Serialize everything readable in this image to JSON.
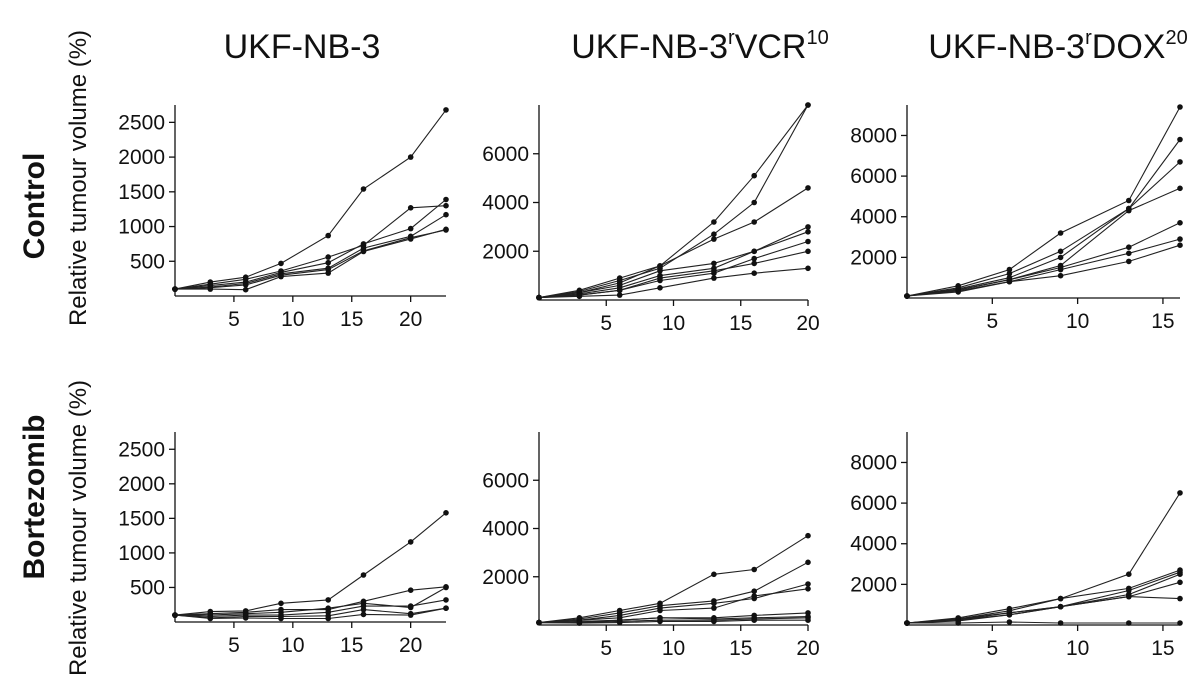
{
  "columns": [
    {
      "base": "UKF-NB-3",
      "sup1": "",
      "mid": "",
      "sup2": ""
    },
    {
      "base": "UKF-NB-3",
      "sup1": "r",
      "mid": "VCR",
      "sup2": "10"
    },
    {
      "base": "UKF-NB-3",
      "sup1": "r",
      "mid": "DOX",
      "sup2": "20"
    }
  ],
  "rows": [
    "Control",
    "Bortezomib"
  ],
  "ylabel": "Relative tumour volume (%)",
  "chart_data": [
    {
      "type": "line",
      "row": "Control",
      "column": "UKF-NB-3",
      "xlim": [
        0,
        23
      ],
      "ylim": [
        0,
        2750
      ],
      "xticks": [
        5,
        10,
        15,
        20
      ],
      "yticks": [
        500,
        1000,
        1500,
        2000,
        2500
      ],
      "x": [
        0,
        3,
        6,
        9,
        13,
        16,
        20,
        23
      ],
      "series": [
        {
          "values": [
            100,
            200,
            270,
            470,
            870,
            1540,
            2000,
            2680
          ]
        },
        {
          "values": [
            100,
            170,
            240,
            360,
            560,
            730,
            1270,
            1300
          ]
        },
        {
          "values": [
            100,
            150,
            200,
            340,
            480,
            750,
            970,
            1390
          ]
        },
        {
          "values": [
            100,
            130,
            180,
            320,
            400,
            690,
            860,
            1170
          ]
        },
        {
          "values": [
            100,
            120,
            160,
            300,
            380,
            650,
            840,
            950
          ]
        },
        {
          "values": [
            100,
            100,
            90,
            280,
            330,
            640,
            820,
            960
          ]
        }
      ]
    },
    {
      "type": "line",
      "row": "Control",
      "column": "UKF-NB-3rVCR10",
      "xlim": [
        0,
        20
      ],
      "ylim": [
        0,
        8000
      ],
      "xticks": [
        5,
        10,
        15,
        20
      ],
      "yticks": [
        2000,
        4000,
        6000
      ],
      "x": [
        0,
        3,
        6,
        9,
        13,
        16,
        20
      ],
      "series": [
        {
          "values": [
            100,
            400,
            900,
            1400,
            3200,
            5100,
            8000
          ]
        },
        {
          "values": [
            100,
            350,
            800,
            1300,
            2700,
            4000,
            8000
          ]
        },
        {
          "values": [
            100,
            300,
            700,
            1400,
            2500,
            3200,
            4600
          ]
        },
        {
          "values": [
            100,
            300,
            600,
            1200,
            1500,
            2000,
            3000
          ]
        },
        {
          "values": [
            100,
            250,
            500,
            1000,
            1300,
            2000,
            2800
          ]
        },
        {
          "values": [
            100,
            200,
            400,
            800,
            1100,
            1700,
            2400
          ]
        },
        {
          "values": [
            100,
            200,
            400,
            900,
            1200,
            1500,
            2000
          ]
        },
        {
          "values": [
            100,
            150,
            200,
            500,
            900,
            1100,
            1300
          ]
        }
      ]
    },
    {
      "type": "line",
      "row": "Control",
      "column": "UKF-NB-3rDOX20",
      "xlim": [
        0,
        16
      ],
      "ylim": [
        0,
        9500
      ],
      "xticks": [
        5,
        10,
        15
      ],
      "yticks": [
        2000,
        4000,
        6000,
        8000
      ],
      "x": [
        0,
        3,
        6,
        9,
        13,
        16
      ],
      "series": [
        {
          "values": [
            100,
            600,
            1400,
            3200,
            4800,
            9400
          ]
        },
        {
          "values": [
            100,
            500,
            1200,
            2300,
            4400,
            7800
          ]
        },
        {
          "values": [
            100,
            450,
            1000,
            2000,
            4400,
            6700
          ]
        },
        {
          "values": [
            100,
            400,
            900,
            1600,
            4300,
            5400
          ]
        },
        {
          "values": [
            100,
            400,
            900,
            1500,
            2500,
            3700
          ]
        },
        {
          "values": [
            100,
            350,
            800,
            1400,
            2200,
            2900
          ]
        },
        {
          "values": [
            100,
            300,
            800,
            1100,
            1800,
            2600
          ]
        }
      ]
    },
    {
      "type": "line",
      "row": "Bortezomib",
      "column": "UKF-NB-3",
      "xlim": [
        0,
        23
      ],
      "ylim": [
        0,
        2750
      ],
      "xticks": [
        5,
        10,
        15,
        20
      ],
      "yticks": [
        500,
        1000,
        1500,
        2000,
        2500
      ],
      "x": [
        0,
        3,
        6,
        9,
        13,
        16,
        20,
        23
      ],
      "series": [
        {
          "values": [
            100,
            150,
            160,
            270,
            320,
            680,
            1160,
            1580
          ]
        },
        {
          "values": [
            100,
            120,
            140,
            180,
            180,
            300,
            460,
            510
          ]
        },
        {
          "values": [
            100,
            100,
            120,
            140,
            200,
            270,
            210,
            500
          ]
        },
        {
          "values": [
            100,
            80,
            100,
            100,
            140,
            230,
            230,
            320
          ]
        },
        {
          "values": [
            100,
            60,
            80,
            80,
            90,
            180,
            120,
            200
          ]
        },
        {
          "values": [
            100,
            50,
            60,
            50,
            50,
            110,
            100,
            200
          ]
        }
      ]
    },
    {
      "type": "line",
      "row": "Bortezomib",
      "column": "UKF-NB-3rVCR10",
      "xlim": [
        0,
        20
      ],
      "ylim": [
        0,
        8000
      ],
      "xticks": [
        5,
        10,
        15,
        20
      ],
      "yticks": [
        2000,
        4000,
        6000
      ],
      "x": [
        0,
        3,
        6,
        9,
        13,
        16,
        20
      ],
      "series": [
        {
          "values": [
            100,
            300,
            600,
            900,
            2100,
            2300,
            3700
          ]
        },
        {
          "values": [
            100,
            250,
            500,
            800,
            1000,
            1400,
            2600
          ]
        },
        {
          "values": [
            100,
            200,
            400,
            700,
            900,
            1100,
            1700
          ]
        },
        {
          "values": [
            100,
            200,
            300,
            600,
            700,
            1200,
            1500
          ]
        },
        {
          "values": [
            100,
            150,
            200,
            300,
            300,
            400,
            500
          ]
        },
        {
          "values": [
            100,
            100,
            200,
            300,
            250,
            300,
            350
          ]
        },
        {
          "values": [
            100,
            100,
            150,
            200,
            200,
            250,
            300
          ]
        },
        {
          "values": [
            100,
            80,
            100,
            150,
            150,
            200,
            200
          ]
        }
      ]
    },
    {
      "type": "line",
      "row": "Bortezomib",
      "column": "UKF-NB-3rDOX20",
      "xlim": [
        0,
        16
      ],
      "ylim": [
        0,
        9500
      ],
      "xticks": [
        5,
        10,
        15
      ],
      "yticks": [
        2000,
        4000,
        6000,
        8000
      ],
      "x": [
        0,
        3,
        6,
        9,
        13,
        16
      ],
      "series": [
        {
          "values": [
            100,
            350,
            800,
            1300,
            2500,
            6500
          ]
        },
        {
          "values": [
            100,
            300,
            700,
            1300,
            1800,
            2700
          ]
        },
        {
          "values": [
            100,
            300,
            600,
            900,
            1700,
            2600
          ]
        },
        {
          "values": [
            100,
            250,
            600,
            900,
            1500,
            2500
          ]
        },
        {
          "values": [
            100,
            250,
            500,
            900,
            1400,
            2100
          ]
        },
        {
          "values": [
            100,
            200,
            500,
            900,
            1400,
            1300
          ]
        },
        {
          "values": [
            100,
            100,
            150,
            100,
            100,
            100
          ]
        }
      ]
    }
  ]
}
